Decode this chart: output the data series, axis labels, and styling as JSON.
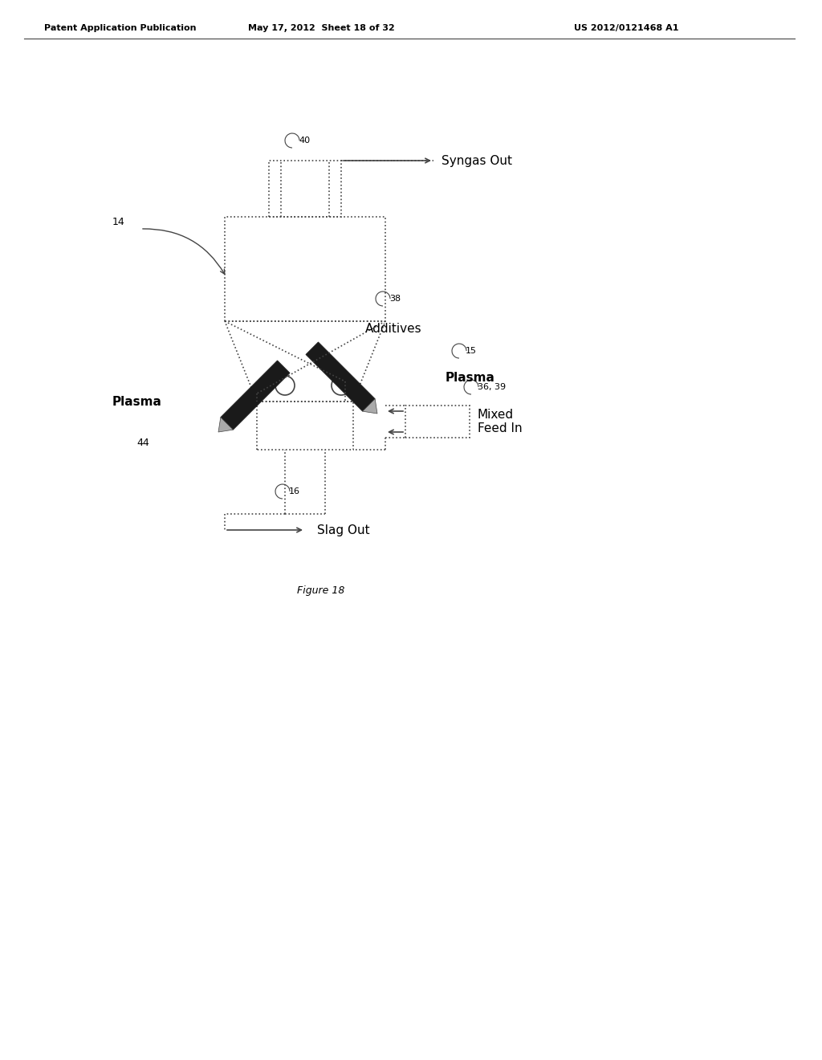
{
  "bg_color": "#ffffff",
  "header_left": "Patent Application Publication",
  "header_mid": "May 17, 2012  Sheet 18 of 32",
  "header_right": "US 2012/0121468 A1",
  "figure_label": "Figure 18",
  "labels": {
    "syngas_out": "Syngas Out",
    "additives": "Additives",
    "plasma_left": "Plasma",
    "plasma_right": "Plasma",
    "mixed_feed": "Mixed\nFeed In",
    "slag_out": "Slag Out",
    "num_40": "40",
    "num_14": "14",
    "num_38": "38",
    "num_15": "15",
    "num_36_39": "36, 39",
    "num_44": "44",
    "num_16": "16"
  },
  "line_color": "#444444",
  "line_color_light": "#888888",
  "text_color": "#000000"
}
